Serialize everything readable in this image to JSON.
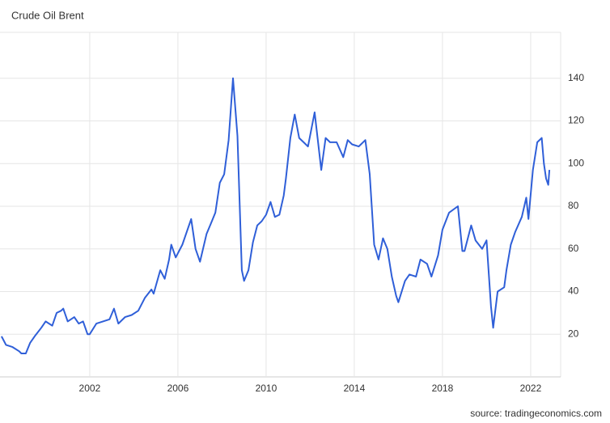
{
  "chart_data": {
    "type": "line",
    "title": "Crude Oil Brent",
    "source": "source: tradingeconomics.com",
    "series": [
      {
        "name": "Brent",
        "color": "#2f5fd8",
        "x": [
          1998.0,
          1998.2,
          1998.5,
          1998.8,
          1998.9,
          1999.1,
          1999.3,
          1999.5,
          1999.8,
          2000.0,
          2000.3,
          2000.5,
          2000.7,
          2000.8,
          2001.0,
          2001.3,
          2001.5,
          2001.7,
          2001.9,
          2002.0,
          2002.3,
          2002.6,
          2002.9,
          2003.1,
          2003.3,
          2003.6,
          2003.9,
          2004.2,
          2004.5,
          2004.8,
          2004.9,
          2005.2,
          2005.4,
          2005.6,
          2005.7,
          2005.9,
          2006.2,
          2006.6,
          2006.8,
          2007.0,
          2007.3,
          2007.5,
          2007.7,
          2007.9,
          2008.1,
          2008.3,
          2008.5,
          2008.7,
          2008.9,
          2009.0,
          2009.2,
          2009.4,
          2009.6,
          2009.8,
          2010.0,
          2010.2,
          2010.4,
          2010.6,
          2010.8,
          2010.9,
          2011.1,
          2011.3,
          2011.5,
          2011.7,
          2011.9,
          2012.2,
          2012.5,
          2012.7,
          2012.9,
          2013.2,
          2013.5,
          2013.7,
          2013.9,
          2014.2,
          2014.5,
          2014.7,
          2014.9,
          2015.1,
          2015.3,
          2015.5,
          2015.7,
          2015.9,
          2016.0,
          2016.3,
          2016.5,
          2016.8,
          2017.0,
          2017.3,
          2017.5,
          2017.8,
          2018.0,
          2018.3,
          2018.7,
          2018.9,
          2019.0,
          2019.3,
          2019.5,
          2019.8,
          2020.0,
          2020.2,
          2020.3,
          2020.5,
          2020.8,
          2020.9,
          2021.1,
          2021.3,
          2021.6,
          2021.8,
          2021.9,
          2022.1,
          2022.3,
          2022.5,
          2022.6,
          2022.7,
          2022.8,
          2022.85
        ],
        "values": [
          19,
          15,
          14,
          12,
          11,
          11,
          16,
          19,
          23,
          26,
          24,
          30,
          31,
          32,
          26,
          28,
          25,
          26,
          20,
          20,
          25,
          26,
          27,
          32,
          25,
          28,
          29,
          31,
          37,
          41,
          39,
          50,
          46,
          55,
          62,
          56,
          62,
          74,
          60,
          54,
          67,
          72,
          77,
          91,
          95,
          111,
          140,
          113,
          50,
          45,
          50,
          63,
          71,
          73,
          76,
          82,
          75,
          76,
          85,
          93,
          112,
          123,
          112,
          110,
          108,
          124,
          97,
          112,
          110,
          110,
          103,
          111,
          109,
          108,
          111,
          95,
          62,
          55,
          65,
          60,
          47,
          38,
          35,
          45,
          48,
          47,
          55,
          53,
          47,
          57,
          69,
          77,
          80,
          59,
          59,
          71,
          64,
          60,
          64,
          33,
          23,
          40,
          42,
          50,
          62,
          68,
          75,
          84,
          74,
          97,
          110,
          112,
          100,
          93,
          90,
          97
        ]
      }
    ],
    "xlim": [
      1997.93,
      2023.36
    ],
    "ylim": [
      0,
      160.75
    ],
    "xticks": [
      2002,
      2006,
      2010,
      2014,
      2018,
      2022
    ],
    "yticks": [
      20,
      40,
      60,
      80,
      100,
      120,
      140
    ],
    "grid": true
  }
}
